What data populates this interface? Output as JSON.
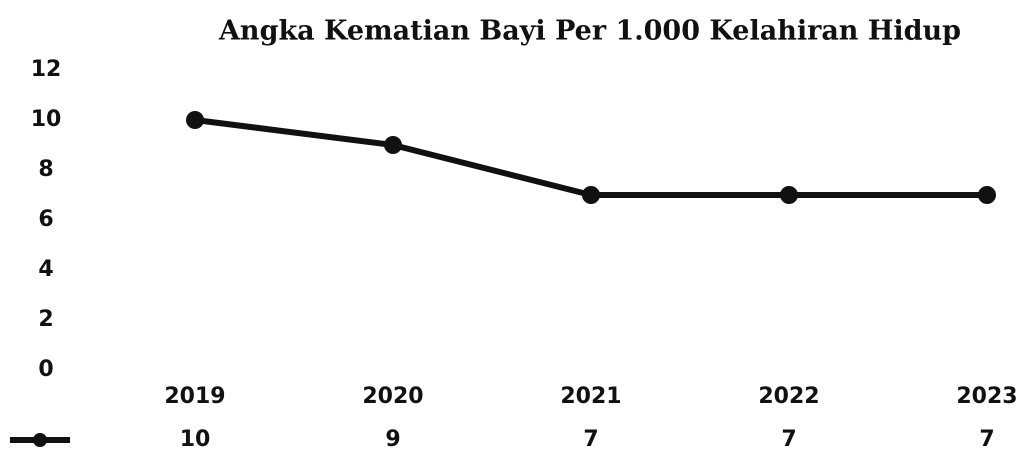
{
  "chart_data": {
    "type": "line",
    "title": "Angka Kematian Bayi Per 1.000 Kelahiran Hidup",
    "categories": [
      "2019",
      "2020",
      "2021",
      "2022",
      "2023"
    ],
    "values": [
      10,
      9,
      7,
      7,
      7
    ],
    "color": "#111111",
    "ylim": [
      0,
      12
    ],
    "yticks": [
      0,
      2,
      4,
      6,
      8,
      10,
      12
    ],
    "grid": false
  }
}
